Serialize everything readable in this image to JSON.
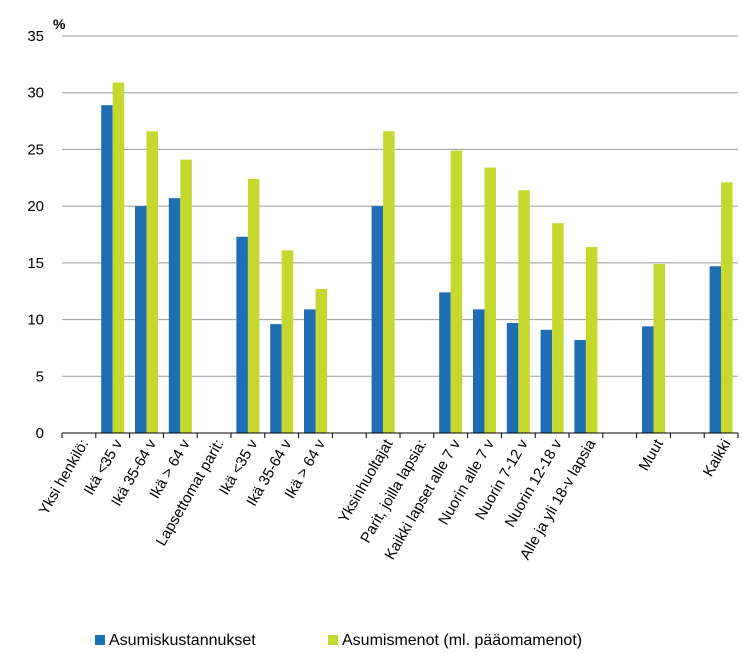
{
  "chart_data": {
    "type": "bar",
    "unit_label": "%",
    "ylim": [
      0,
      35
    ],
    "yticks": [
      0,
      5,
      10,
      15,
      20,
      25,
      30,
      35
    ],
    "grid": true,
    "legend_position": "bottom",
    "categories": [
      "Yksi henkilö:",
      "Ikä <35 v",
      "Ikä 35-64 v",
      "Ikä > 64 v",
      "Lapsettomat parit:",
      "Ikä <35 v",
      "Ikä 35-64 v",
      "Ikä > 64 v",
      "",
      "Yksinhuoltajat",
      "Parit, joilla lapsia:",
      "Kaikki lapset alle 7 v",
      "Nuorin alle 7 v",
      "Nuorin 7-12 v",
      "Nuorin 12-18 v",
      "Alle ja yli 18-v lapsia",
      "",
      "Muut",
      "",
      "Kaikki"
    ],
    "series": [
      {
        "name": "Asumiskustannukset",
        "color": "#1f6db3",
        "values": [
          null,
          28.9,
          20.0,
          20.7,
          null,
          17.3,
          9.6,
          10.9,
          null,
          20.0,
          null,
          12.4,
          10.9,
          9.7,
          9.1,
          8.2,
          null,
          9.4,
          null,
          14.7
        ]
      },
      {
        "name": "Asumismenot (ml. pääomamenot)",
        "color": "#c4d82e",
        "values": [
          null,
          30.9,
          26.6,
          24.1,
          null,
          22.4,
          16.1,
          12.7,
          null,
          26.6,
          null,
          24.9,
          23.4,
          21.4,
          18.5,
          16.4,
          null,
          14.9,
          null,
          22.1
        ]
      }
    ]
  }
}
